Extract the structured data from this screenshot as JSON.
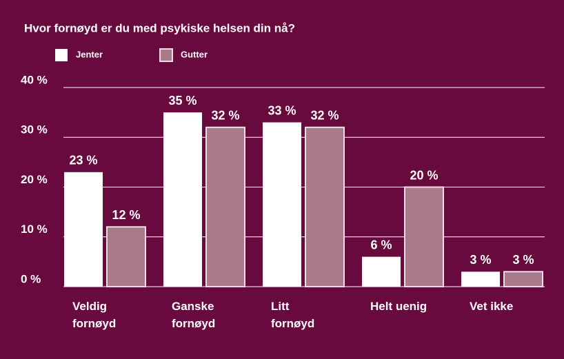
{
  "chart_data": {
    "type": "bar",
    "title": "Hvor fornøyd er du med psykiske helsen din nå?",
    "categories": [
      "Veldig fornøyd",
      "Ganske fornøyd",
      "Litt fornøyd",
      "Helt uenig",
      "Vet ikke"
    ],
    "series": [
      {
        "name": "Jenter",
        "color": "#ffffff",
        "values": [
          23,
          35,
          33,
          6,
          3
        ],
        "value_labels": [
          "23 %",
          "35 %",
          "33 %",
          "6 %",
          "3 %"
        ]
      },
      {
        "name": "Gutter",
        "color": "#a87a8c",
        "values": [
          12,
          32,
          32,
          20,
          3
        ],
        "value_labels": [
          "12 %",
          "32 %",
          "32 %",
          "20 %",
          "3 %"
        ]
      }
    ],
    "ylim": [
      0,
      40
    ],
    "yticks": [
      {
        "value": 0,
        "label": "0 %"
      },
      {
        "value": 10,
        "label": "10 %"
      },
      {
        "value": 20,
        "label": "20 %"
      },
      {
        "value": 30,
        "label": "30 %"
      },
      {
        "value": 40,
        "label": "40 %"
      }
    ],
    "grid": true
  }
}
